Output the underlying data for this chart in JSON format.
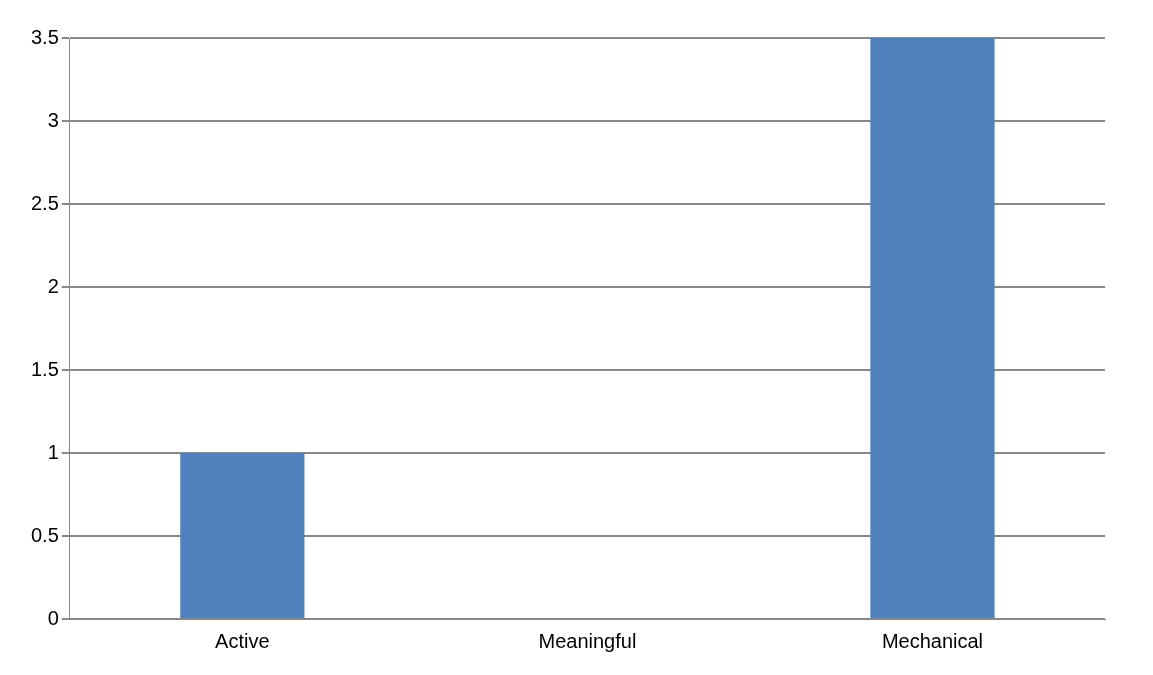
{
  "chart_data": {
    "type": "bar",
    "categories": [
      "Active",
      "Meaningful",
      "Mechanical"
    ],
    "values": [
      1,
      0,
      3.5
    ],
    "color": "#4f81bd",
    "ylim": [
      0,
      3.5
    ],
    "yticks": [
      0,
      0.5,
      1,
      1.5,
      2,
      2.5,
      3,
      3.5
    ],
    "grid": "y"
  }
}
